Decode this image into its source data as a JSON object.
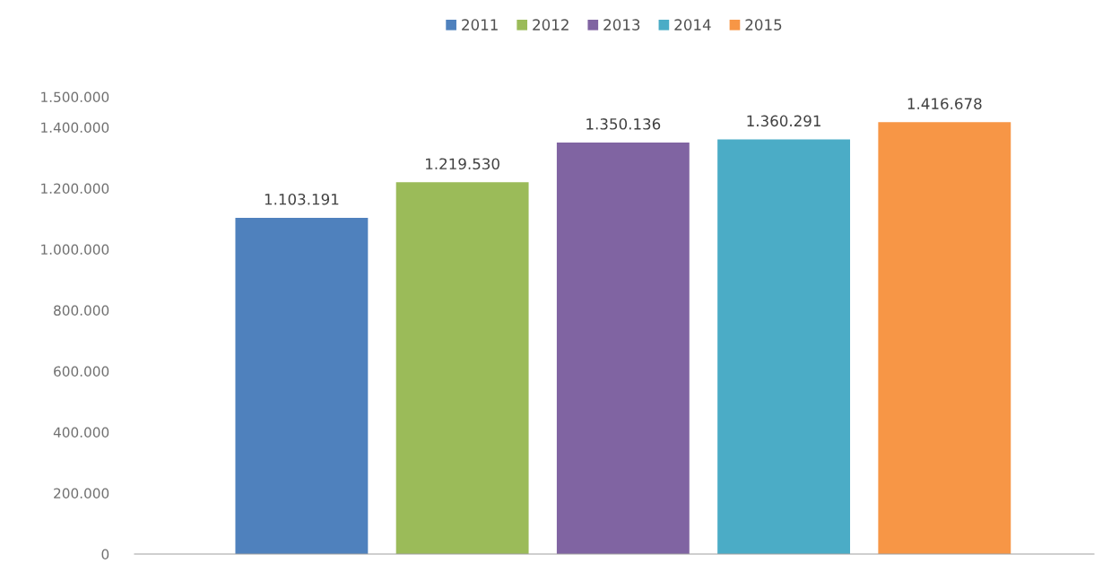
{
  "chart_data": {
    "type": "bar",
    "categories": [
      null
    ],
    "series": [
      {
        "name": "2011",
        "color": "#4f81bd",
        "values": [
          1103191
        ],
        "value_labels": [
          "1.103.191"
        ]
      },
      {
        "name": "2012",
        "color": "#9bbb59",
        "values": [
          1219530
        ],
        "value_labels": [
          "1.219.530"
        ]
      },
      {
        "name": "2013",
        "color": "#8064a2",
        "values": [
          1350136
        ],
        "value_labels": [
          "1.350.136"
        ]
      },
      {
        "name": "2014",
        "color": "#4bacc6",
        "values": [
          1360291
        ],
        "value_labels": [
          "1.360.291"
        ]
      },
      {
        "name": "2015",
        "color": "#f79646",
        "values": [
          1416678
        ],
        "value_labels": [
          "1.416.678"
        ]
      }
    ],
    "ylim": [
      0,
      1500000
    ],
    "yticks": [
      {
        "value": 0,
        "label": "0"
      },
      {
        "value": 200000,
        "label": "200.000"
      },
      {
        "value": 400000,
        "label": "400.000"
      },
      {
        "value": 600000,
        "label": "600.000"
      },
      {
        "value": 800000,
        "label": "800.000"
      },
      {
        "value": 1000000,
        "label": "1.000.000"
      },
      {
        "value": 1200000,
        "label": "1.200.000"
      },
      {
        "value": 1400000,
        "label": "1.400.000"
      },
      {
        "value": 1500000,
        "label": "1.500.000"
      }
    ],
    "grid": false,
    "legend": "top"
  }
}
